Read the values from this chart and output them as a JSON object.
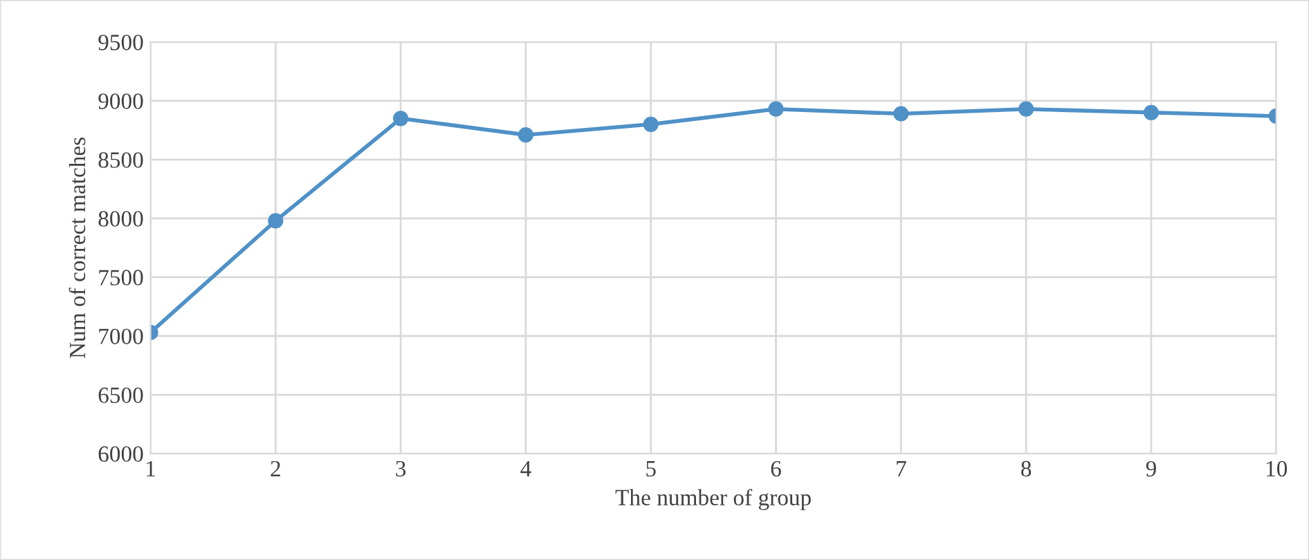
{
  "chart_data": {
    "type": "line",
    "xlabel": "The number of group",
    "ylabel": "Num of correct matches",
    "categories": [
      "1",
      "2",
      "3",
      "4",
      "5",
      "6",
      "7",
      "8",
      "9",
      "10"
    ],
    "series": [
      {
        "color": "#4f91c7",
        "values": [
          7030,
          7980,
          8850,
          8710,
          8800,
          8930,
          8890,
          8930,
          8900,
          8870
        ]
      }
    ],
    "ylim": [
      6000,
      9500
    ],
    "yticks": [
      6000,
      6500,
      7000,
      7500,
      8000,
      8500,
      9000,
      9500
    ],
    "grid": true,
    "marker": "circle",
    "line_style": "solid"
  }
}
